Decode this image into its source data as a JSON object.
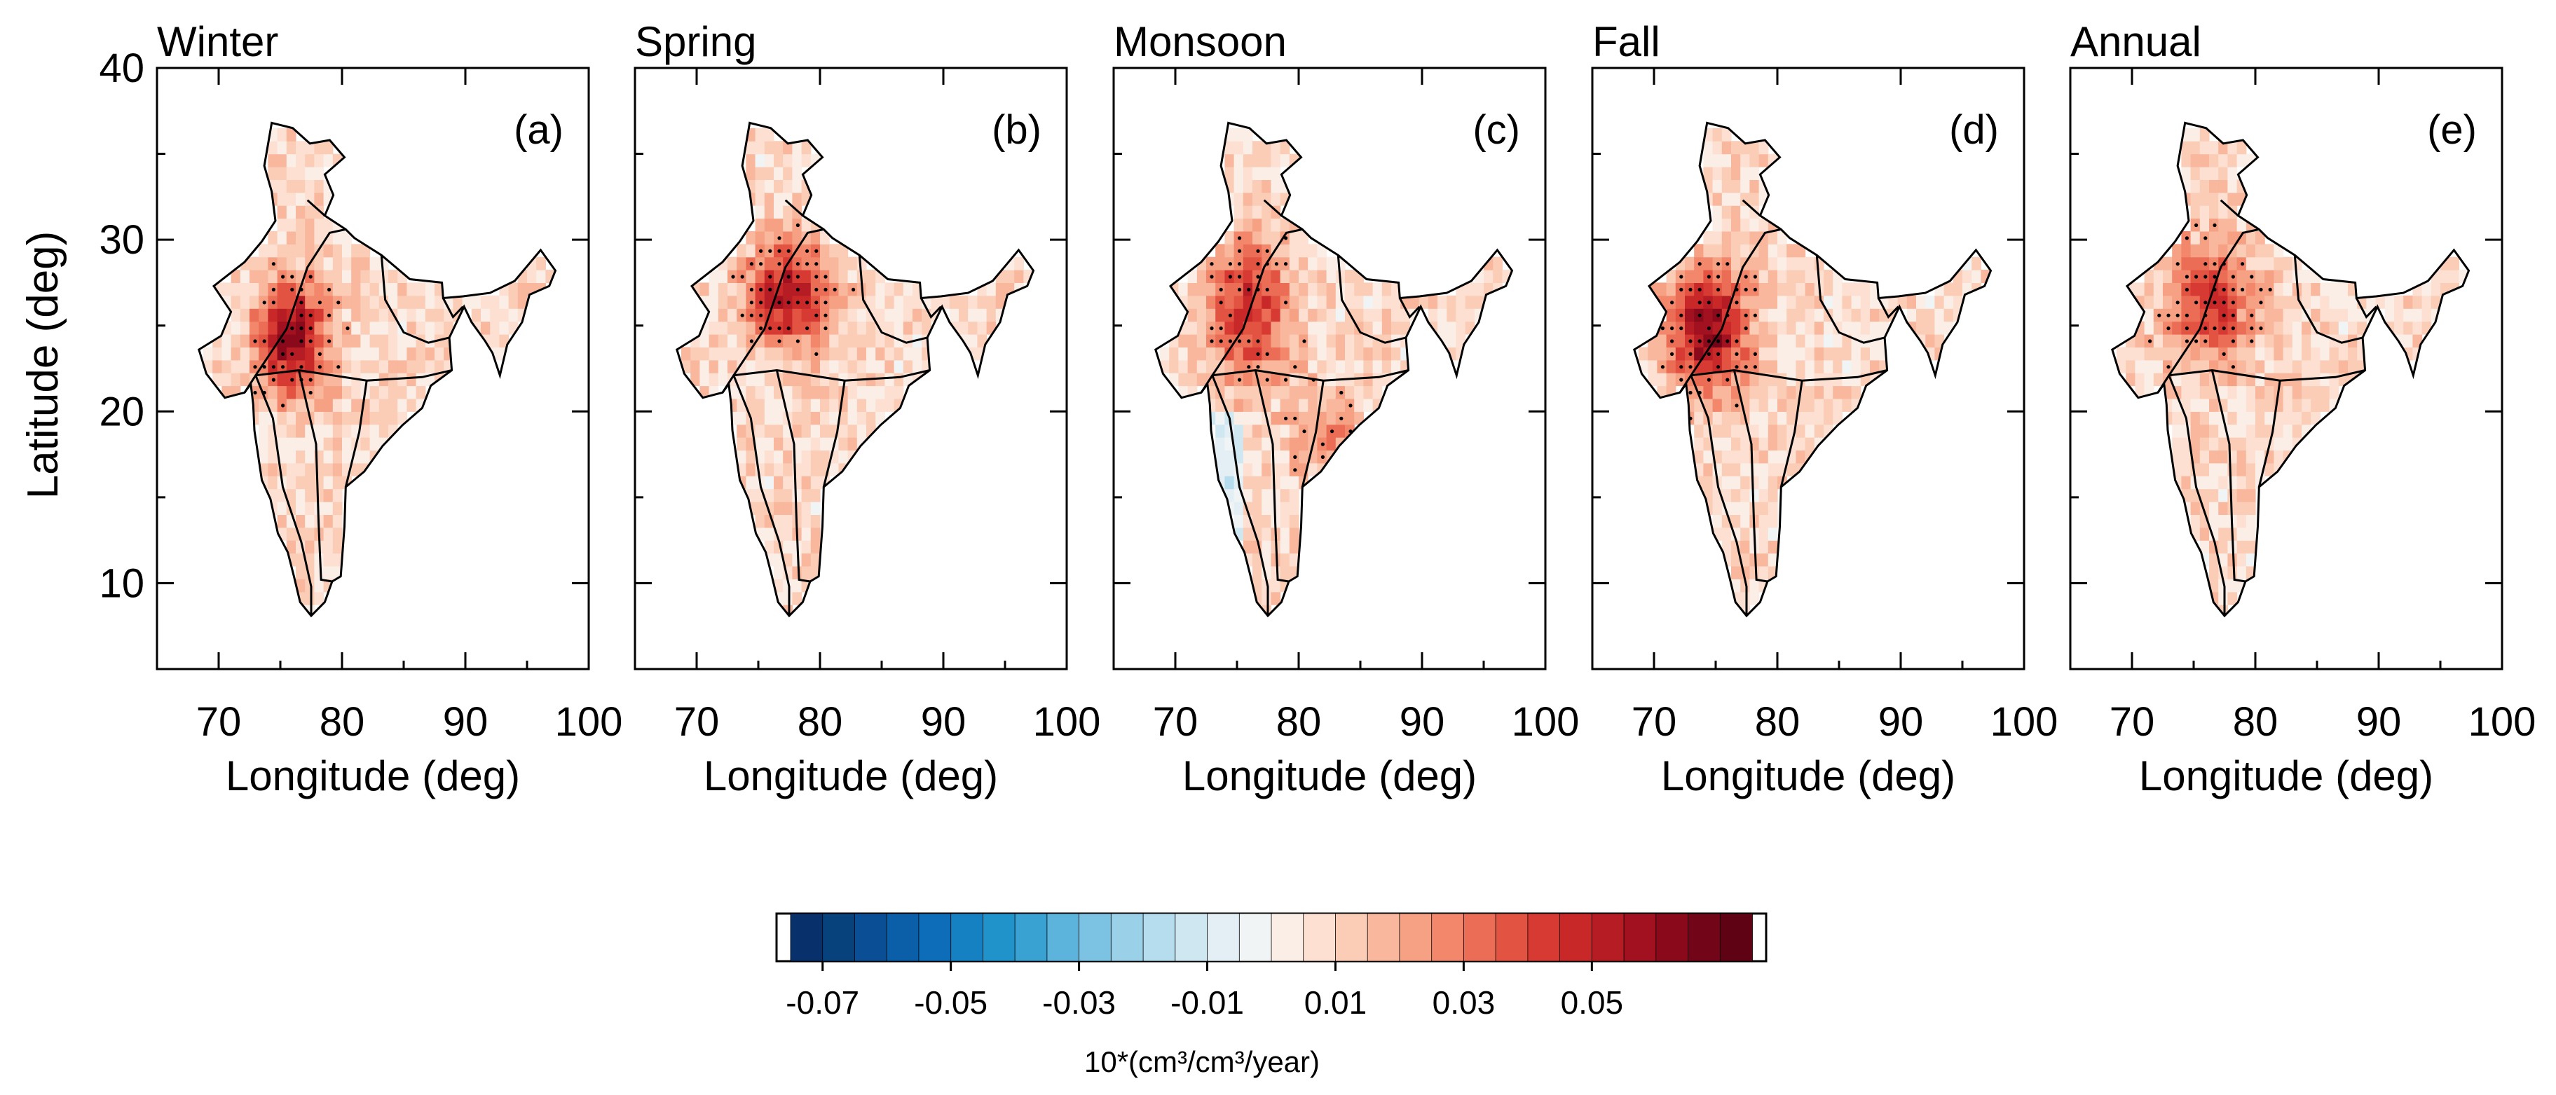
{
  "chart_data": {
    "type": "heatmap",
    "panels": [
      {
        "season": "Winter",
        "letter": "(a)"
      },
      {
        "season": "Spring",
        "letter": "(b)"
      },
      {
        "season": "Monsoon",
        "letter": "(c)"
      },
      {
        "season": "Fall",
        "letter": "(d)"
      },
      {
        "season": "Annual",
        "letter": "(e)"
      }
    ],
    "xlabel": "Longitude (deg)",
    "ylabel": "Latitude (deg)",
    "xlim": [
      65,
      100
    ],
    "ylim": [
      5,
      40
    ],
    "xticks": [
      70,
      80,
      90,
      100
    ],
    "yticks": [
      10,
      20,
      30,
      40
    ],
    "colorbar": {
      "unit": "10*(cm³/cm³/year)",
      "range": [
        -0.075,
        0.075
      ],
      "step": 0.005,
      "tick_values": [
        -0.07,
        -0.05,
        -0.03,
        -0.01,
        0.01,
        0.03,
        0.05
      ],
      "tick_labels": [
        "-0.07",
        "-0.05",
        "-0.03",
        "-0.01",
        "0.01",
        "0.03",
        "0.05"
      ],
      "colors": [
        "#08306b",
        "#08427d",
        "#0a4f95",
        "#0b5ea8",
        "#0d6db8",
        "#1580c2",
        "#2093cb",
        "#3aa2d3",
        "#5cb3dc",
        "#7cc2e3",
        "#9ad0e8",
        "#b6dded",
        "#cfe7f1",
        "#e3eff4",
        "#f0f4f5",
        "#fbeee6",
        "#fde0d1",
        "#fbcdb7",
        "#f9b79d",
        "#f6a084",
        "#f2876c",
        "#ec6d55",
        "#e35342",
        "#d73a33",
        "#c82828",
        "#b51c24",
        "#a1111f",
        "#8a0a1b",
        "#730518",
        "#5e0214"
      ]
    }
  }
}
